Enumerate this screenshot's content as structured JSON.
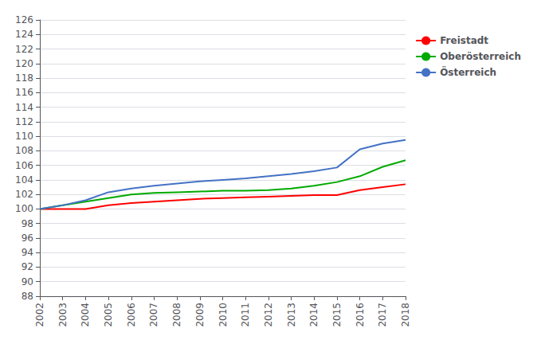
{
  "chart_data": {
    "type": "line",
    "x": [
      2002,
      2003,
      2004,
      2005,
      2006,
      2007,
      2008,
      2009,
      2010,
      2011,
      2012,
      2013,
      2014,
      2015,
      2016,
      2017,
      2018
    ],
    "series": [
      {
        "name": "Freistadt",
        "color": "#FF0000",
        "values": [
          100.0,
          100.0,
          100.0,
          100.5,
          100.8,
          101.0,
          101.2,
          101.4,
          101.5,
          101.6,
          101.7,
          101.8,
          101.9,
          101.9,
          102.6,
          103.0,
          103.4
        ]
      },
      {
        "name": "Oberösterreich",
        "color": "#00AA00",
        "values": [
          100.0,
          100.5,
          101.0,
          101.5,
          102.0,
          102.2,
          102.3,
          102.4,
          102.5,
          102.5,
          102.6,
          102.8,
          103.2,
          103.7,
          104.5,
          105.8,
          106.7
        ]
      },
      {
        "name": "Österreich",
        "color": "#4472C4",
        "values": [
          100.0,
          100.5,
          101.2,
          102.3,
          102.8,
          103.2,
          103.5,
          103.8,
          104.0,
          104.2,
          104.5,
          104.8,
          105.2,
          105.7,
          108.2,
          109.0,
          109.5
        ]
      }
    ],
    "xlim": [
      2002,
      2018
    ],
    "xticks": [
      2002,
      2003,
      2004,
      2005,
      2006,
      2007,
      2008,
      2009,
      2010,
      2011,
      2012,
      2013,
      2014,
      2015,
      2016,
      2017,
      2018
    ],
    "ylim": [
      88,
      126
    ],
    "yticks": [
      88,
      90,
      92,
      94,
      96,
      98,
      100,
      102,
      104,
      106,
      108,
      110,
      112,
      114,
      116,
      118,
      120,
      122,
      124,
      126
    ],
    "grid": true,
    "legend": "right"
  }
}
